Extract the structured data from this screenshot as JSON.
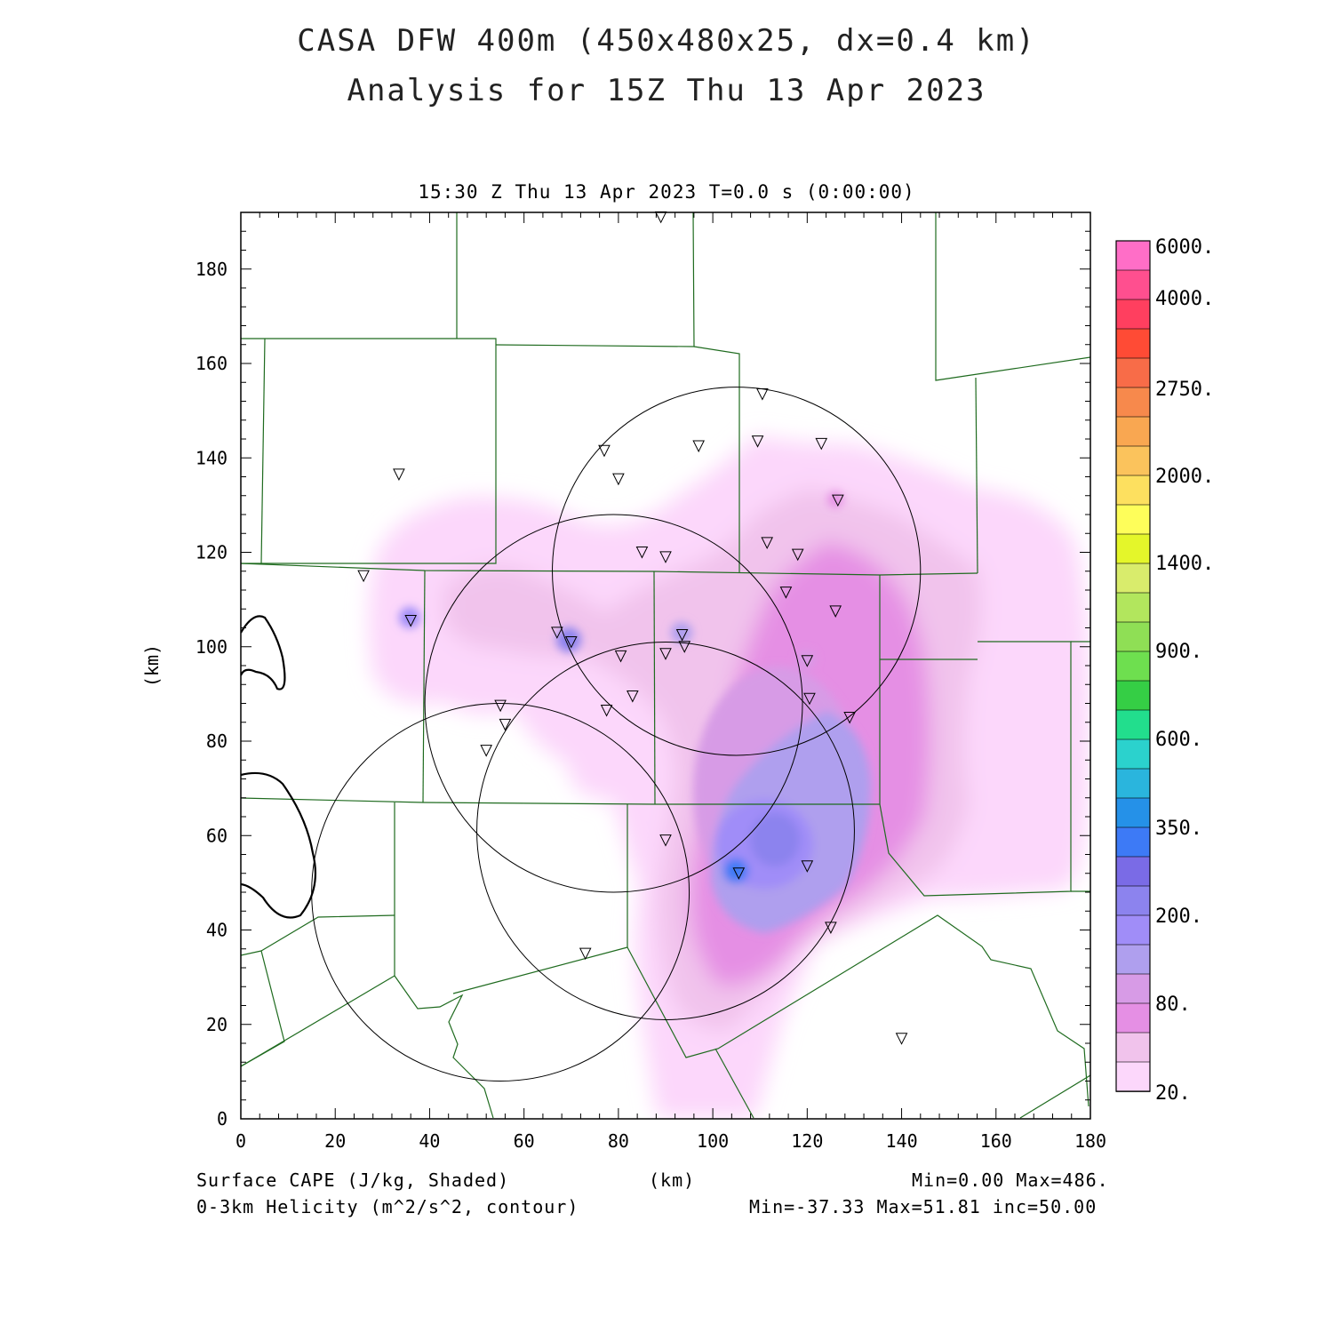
{
  "header": {
    "title_line1": "CASA DFW 400m (450x480x25, dx=0.4 km)",
    "title_line2": "Analysis for 15Z Thu 13 Apr 2023",
    "subtitle": "15:30 Z Thu 13 Apr 2023   T=0.0 s (0:00:00)"
  },
  "axes": {
    "x_unit": "(km)",
    "y_unit": "(km)",
    "x_ticks": [
      "0",
      "20",
      "40",
      "60",
      "80",
      "100",
      "120",
      "140",
      "160",
      "180"
    ],
    "y_ticks": [
      "0",
      "20",
      "40",
      "60",
      "80",
      "100",
      "120",
      "140",
      "160",
      "180"
    ],
    "x_range": [
      0,
      180
    ],
    "y_range": [
      0,
      192
    ]
  },
  "colorbar": {
    "labels": [
      "6000.",
      "4000.",
      "2750.",
      "2000.",
      "1400.",
      "900.",
      "600.",
      "350.",
      "200.",
      "80.",
      "20."
    ],
    "colors": [
      "#ff6ec7",
      "#ff4f8f",
      "#ff3f5f",
      "#ff4b35",
      "#f86c48",
      "#f7894c",
      "#f9a751",
      "#fbc35c",
      "#fde05f",
      "#fefe5a",
      "#e4f62a",
      "#d9ec6c",
      "#b2e65d",
      "#8fdf55",
      "#6edf4f",
      "#35ce45",
      "#22de8d",
      "#2bd2cd",
      "#2ab5dd",
      "#2591e8",
      "#3d7af6",
      "#7a6be6",
      "#8c83ee",
      "#a08df8",
      "#af9fee",
      "#d79be6",
      "#e58fe4",
      "#f1c3ec",
      "#fcd7fb"
    ]
  },
  "footer": {
    "field1_label": "Surface CAPE (J/kg, Shaded)",
    "field1_range": "Min=0.00 Max=486.",
    "field2_label": "0-3km Helicity (m^2/s^2, contour)",
    "field2_range": "Min=-37.33 Max=51.81 inc=50.00",
    "x_unit": "(km)"
  },
  "map": {
    "radar_rings": [
      {
        "cx": 105,
        "cy": 116,
        "r": 39
      },
      {
        "cx": 79,
        "cy": 88,
        "r": 40
      },
      {
        "cx": 90,
        "cy": 61,
        "r": 40
      },
      {
        "cx": 55,
        "cy": 48,
        "r": 40
      }
    ],
    "stations": [
      [
        89,
        191
      ],
      [
        110.5,
        153.5
      ],
      [
        77,
        141.5
      ],
      [
        109.5,
        143.5
      ],
      [
        97,
        142.5
      ],
      [
        123,
        143
      ],
      [
        80,
        135.5
      ],
      [
        33.5,
        136.5
      ],
      [
        126.5,
        131
      ],
      [
        111.5,
        122
      ],
      [
        85,
        120
      ],
      [
        90,
        119
      ],
      [
        118,
        119.5
      ],
      [
        26,
        115
      ],
      [
        115.5,
        111.5
      ],
      [
        126,
        107.5
      ],
      [
        36,
        105.5
      ],
      [
        67,
        103
      ],
      [
        70,
        101
      ],
      [
        93.5,
        102.5
      ],
      [
        94,
        100
      ],
      [
        90,
        98.5
      ],
      [
        80.5,
        98
      ],
      [
        120,
        97
      ],
      [
        83,
        89.5
      ],
      [
        77.5,
        86.5
      ],
      [
        120.5,
        89
      ],
      [
        129,
        85
      ],
      [
        55,
        87.5
      ],
      [
        56,
        83.5
      ],
      [
        52,
        78
      ],
      [
        90,
        59
      ],
      [
        120,
        53.5
      ],
      [
        105.5,
        52
      ],
      [
        125,
        40.5
      ],
      [
        73,
        35
      ],
      [
        140,
        17
      ]
    ],
    "cape_colors": [
      "#fcd7fb",
      "#f1c3ec",
      "#e58fe4",
      "#d79be6",
      "#af9fee",
      "#a08df8",
      "#8c83ee"
    ],
    "boundary_color": "#1f6b1f"
  }
}
